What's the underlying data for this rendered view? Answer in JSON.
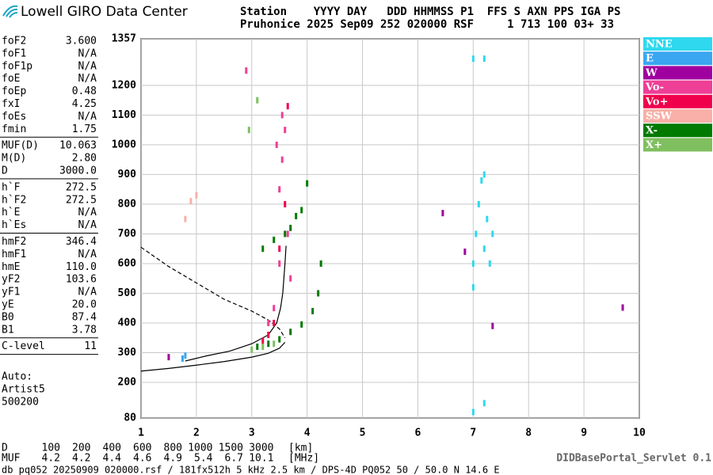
{
  "header": {
    "logo": "Lowell GIRO Data Center",
    "line1": "Station    YYYY DAY   DDD HHMMSS P1  FFS S AXN PPS IGA PS",
    "line2": "Pruhonice 2025 Sep09 252 020000 RSF     1 713 100 03+ 33"
  },
  "params": [
    [
      [
        "foF2",
        "3.600"
      ],
      [
        "foF1",
        "N/A"
      ],
      [
        "foF1p",
        "N/A"
      ],
      [
        "foE",
        "N/A"
      ],
      [
        "foEp",
        "0.48"
      ],
      [
        "fxI",
        "4.25"
      ],
      [
        "foEs",
        "N/A"
      ],
      [
        "fmin",
        "1.75"
      ]
    ],
    [
      [
        "MUF(D)",
        "10.063"
      ],
      [
        "M(D)",
        "2.80"
      ],
      [
        "D",
        "3000.0"
      ]
    ],
    [
      [
        "h`F",
        "272.5"
      ],
      [
        "h`F2",
        "272.5"
      ],
      [
        "h`E",
        "N/A"
      ],
      [
        "h`Es",
        "N/A"
      ]
    ],
    [
      [
        "hmF2",
        "346.4"
      ],
      [
        "hmF1",
        "N/A"
      ],
      [
        "hmE",
        "110.0"
      ],
      [
        "yF2",
        "103.6"
      ],
      [
        "yF1",
        "N/A"
      ],
      [
        "yE",
        "20.0"
      ],
      [
        "B0",
        "87.4"
      ],
      [
        "B1",
        "3.78"
      ]
    ],
    [
      [
        "C-level",
        "11"
      ]
    ]
  ],
  "auto": [
    "Auto:",
    "Artist5",
    "500200"
  ],
  "muf_table": {
    "d_label": "D",
    "d_values": [
      "100",
      "200",
      "400",
      "600",
      "800",
      "1000",
      "1500",
      "3000"
    ],
    "d_unit": "[km]",
    "muf_label": "MUF",
    "muf_values": [
      "4.2",
      "4.2",
      "4.4",
      "4.6",
      "4.9",
      "5.4",
      "6.7",
      "10.1"
    ],
    "muf_unit": "[MHz]"
  },
  "footer": {
    "left": "db pq052 20250909 020000.rsf / 181fx512h 5 kHz 2.5 km / DPS-4D PQ052 50 / 50.0 N 14.6 E",
    "right": "DIDBasePortal_Servlet 0.1"
  },
  "chart_data": {
    "type": "scatter",
    "xlim": [
      1,
      10
    ],
    "xticks": [
      1,
      2,
      3,
      4,
      5,
      6,
      7,
      8,
      9,
      10
    ],
    "ylim": [
      80,
      1357
    ],
    "yticks": [
      80,
      200,
      300,
      400,
      500,
      600,
      700,
      800,
      900,
      1000,
      1100,
      1200,
      1357
    ],
    "grid": true,
    "legend": "right",
    "series": [
      {
        "name": "NNE",
        "color": "#2fd8ee",
        "x": [
          7.0,
          7.0,
          7.05,
          7.1,
          7.15,
          7.2,
          7.2,
          7.25,
          7.3,
          7.35,
          7.0,
          7.2,
          7.0,
          7.2
        ],
        "y": [
          520,
          600,
          700,
          800,
          880,
          650,
          900,
          750,
          600,
          700,
          1290,
          1290,
          100,
          130
        ]
      },
      {
        "name": "E",
        "color": "#3aa6f2",
        "x": [
          1.75,
          1.8
        ],
        "y": [
          280,
          290
        ]
      },
      {
        "name": "W",
        "color": "#a0009f",
        "x": [
          1.5,
          6.45,
          6.85,
          7.35,
          9.7
        ],
        "y": [
          285,
          770,
          640,
          390,
          452
        ]
      },
      {
        "name": "Vo-",
        "color": "#ee3e96",
        "x": [
          3.5,
          3.55,
          3.6,
          3.65,
          3.7,
          3.5,
          3.4,
          3.3,
          3.45,
          2.9,
          3.55
        ],
        "y": [
          850,
          950,
          1050,
          700,
          550,
          600,
          450,
          400,
          1000,
          1250,
          1100
        ]
      },
      {
        "name": "Vo+",
        "color": "#f0004c",
        "x": [
          3.2,
          3.3,
          3.4,
          3.5,
          3.6,
          3.65
        ],
        "y": [
          340,
          360,
          400,
          650,
          800,
          1130
        ]
      },
      {
        "name": "SSW",
        "color": "#f8b0a8",
        "x": [
          1.8,
          1.9,
          2.0
        ],
        "y": [
          750,
          810,
          830
        ]
      },
      {
        "name": "X-",
        "color": "#007a00",
        "x": [
          3.1,
          3.3,
          3.5,
          3.7,
          3.9,
          4.1,
          4.2,
          4.25,
          3.7,
          3.9,
          4.0,
          3.2,
          3.4,
          3.6,
          3.8
        ],
        "y": [
          320,
          330,
          345,
          370,
          395,
          440,
          500,
          600,
          720,
          780,
          870,
          650,
          680,
          700,
          760
        ]
      },
      {
        "name": "X+",
        "color": "#7fbf5f",
        "x": [
          3.0,
          3.2,
          3.4,
          2.95,
          3.1
        ],
        "y": [
          310,
          320,
          330,
          1050,
          1150
        ]
      }
    ],
    "curves": [
      {
        "style": "solid",
        "x": [
          1.0,
          1.5,
          2.0,
          2.5,
          3.0,
          3.3,
          3.5,
          3.6
        ],
        "y": [
          238,
          247,
          258,
          270,
          285,
          298,
          315,
          335
        ]
      },
      {
        "style": "solid",
        "x": [
          1.8,
          2.2,
          2.6,
          3.0,
          3.3,
          3.45,
          3.52,
          3.56,
          3.6,
          3.62
        ],
        "y": [
          272,
          290,
          305,
          330,
          360,
          400,
          450,
          500,
          600,
          660
        ]
      },
      {
        "style": "dashed",
        "x": [
          1.0,
          1.5,
          2.0,
          2.5,
          3.0,
          3.3,
          3.5,
          3.6
        ],
        "y": [
          655,
          590,
          535,
          480,
          440,
          410,
          380,
          350
        ]
      }
    ]
  }
}
